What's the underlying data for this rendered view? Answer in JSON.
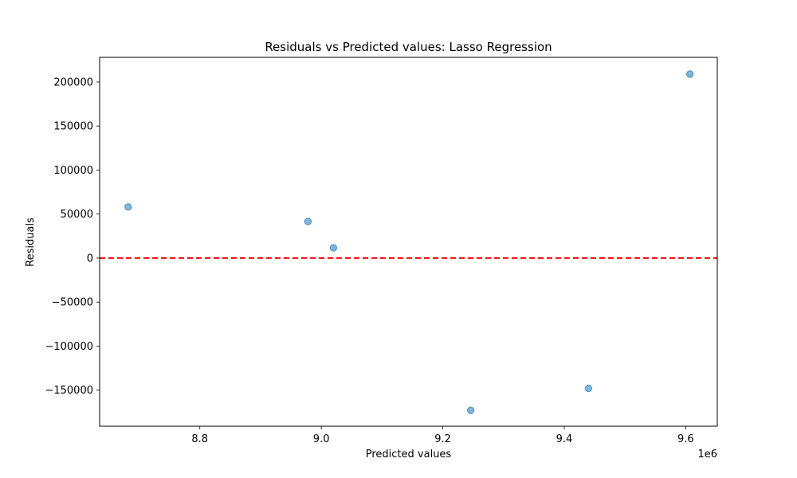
{
  "chart_data": {
    "type": "scatter",
    "title": "Residuals vs Predicted values: Lasso Regression",
    "xlabel": "Predicted values",
    "ylabel": "Residuals",
    "x_offset_label": "1e6",
    "xlim": [
      8.635,
      9.652
    ],
    "ylim": [
      -191000,
      228000
    ],
    "x_ticks": [
      8.8,
      9.0,
      9.2,
      9.4,
      9.6
    ],
    "x_tick_labels": [
      "8.8",
      "9.0",
      "9.2",
      "9.4",
      "9.6"
    ],
    "y_ticks": [
      -150000,
      -100000,
      -50000,
      0,
      50000,
      100000,
      150000,
      200000
    ],
    "y_tick_labels": [
      "−150000",
      "−100000",
      "−50000",
      "0",
      "50000",
      "100000",
      "150000",
      "200000"
    ],
    "points": [
      {
        "x": 8.682,
        "y": 58000
      },
      {
        "x": 8.978,
        "y": 41500
      },
      {
        "x": 9.02,
        "y": 11700
      },
      {
        "x": 9.246,
        "y": -173000
      },
      {
        "x": 9.44,
        "y": -148000
      },
      {
        "x": 9.607,
        "y": 209000
      }
    ],
    "reference_line": {
      "y": 0,
      "style": "dashed",
      "color": "#ff0000"
    },
    "marker_color": "#1f77b4",
    "grid": false,
    "legend": "none"
  }
}
